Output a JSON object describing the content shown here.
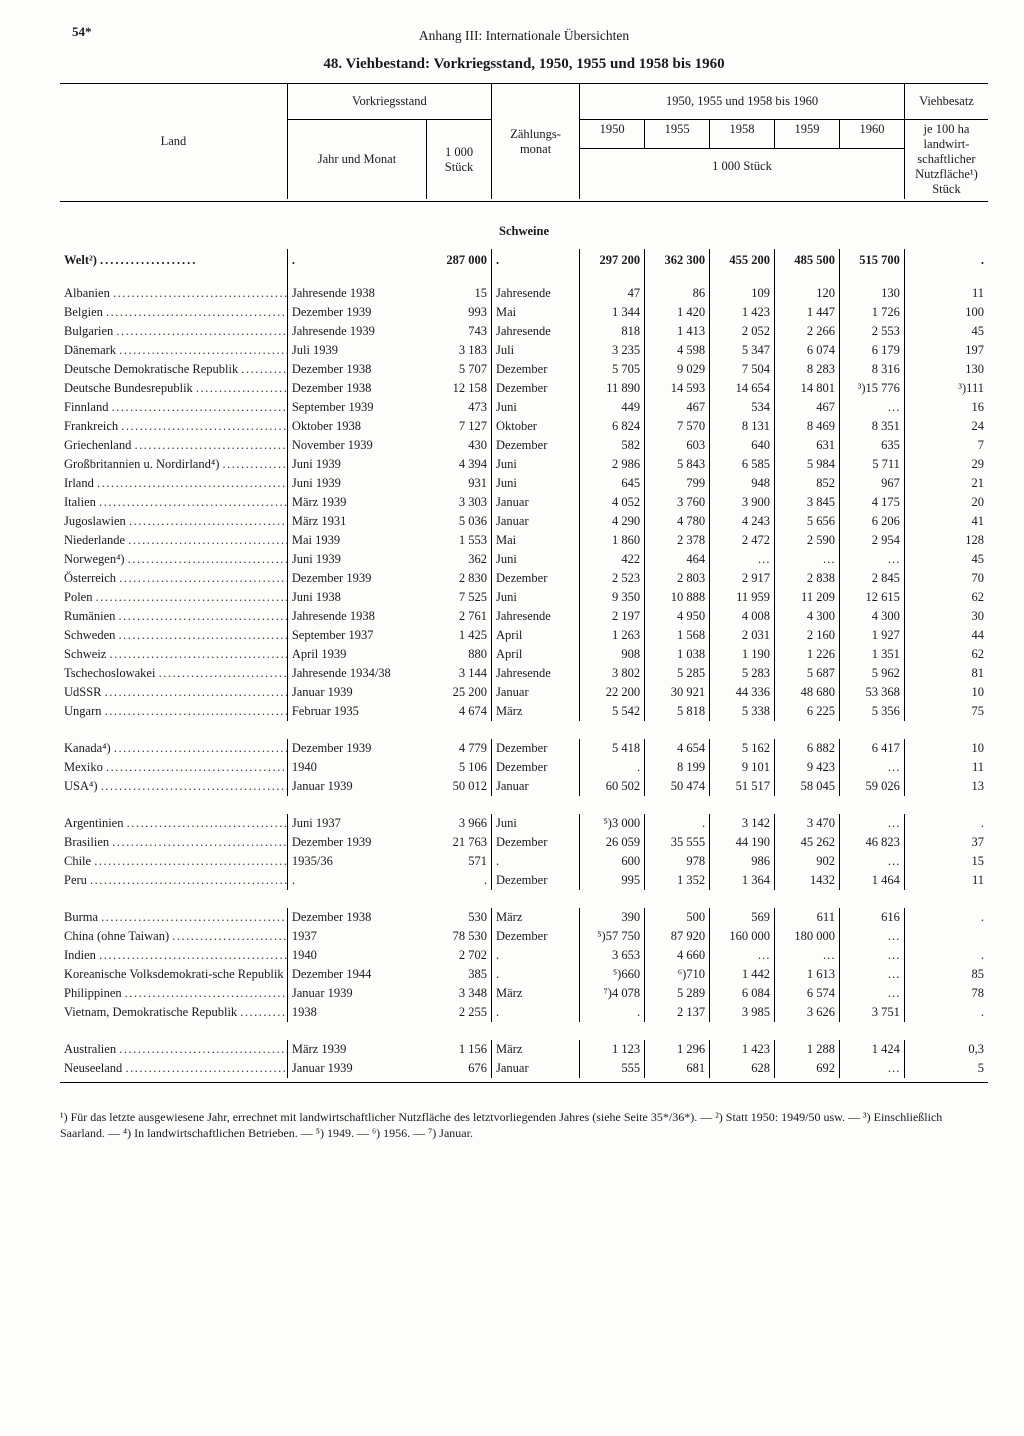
{
  "page_number": "54*",
  "running_header": "Anhang III: Internationale Übersichten",
  "table_title": "48. Viehbestand: Vorkriegsstand, 1950, 1955 und 1958 bis 1960",
  "columns": {
    "land": "Land",
    "vorkrieg": "Vorkriegsstand",
    "jahr_monat": "Jahr und Monat",
    "k_stueck": "1 000 Stück",
    "zaehlungsmonat": "Zählungs-monat",
    "periode": "1950, 1955 und 1958 bis 1960",
    "y1950": "1950",
    "y1955": "1955",
    "y1958": "1958",
    "y1959": "1959",
    "y1960": "1960",
    "k_stueck_sub": "1 000 Stück",
    "viehbesatz": "Viehbesatz",
    "viehbesatz_sub": "je 100 ha landwirt-schaftlicher Nutzfläche¹) Stück"
  },
  "section_title": "Schweine",
  "world_row": {
    "land": "Welt²)",
    "k": "287 000",
    "v1950": "297 200",
    "v1955": "362 300",
    "v1958": "455 200",
    "v1959": "485 500",
    "v1960": "515 700"
  },
  "rows": [
    {
      "land": "Albanien",
      "jahr": "Jahresende 1938",
      "k": "15",
      "zm": "Jahresende",
      "v1950": "47",
      "v1955": "86",
      "v1958": "109",
      "v1959": "120",
      "v1960": "130",
      "vb": "11"
    },
    {
      "land": "Belgien",
      "jahr": "Dezember 1939",
      "k": "993",
      "zm": "Mai",
      "v1950": "1 344",
      "v1955": "1 420",
      "v1958": "1 423",
      "v1959": "1 447",
      "v1960": "1 726",
      "vb": "100"
    },
    {
      "land": "Bulgarien",
      "jahr": "Jahresende 1939",
      "k": "743",
      "zm": "Jahresende",
      "v1950": "818",
      "v1955": "1 413",
      "v1958": "2 052",
      "v1959": "2 266",
      "v1960": "2 553",
      "vb": "45"
    },
    {
      "land": "Dänemark",
      "jahr": "Juli 1939",
      "k": "3 183",
      "zm": "Juli",
      "v1950": "3 235",
      "v1955": "4 598",
      "v1958": "5 347",
      "v1959": "6 074",
      "v1960": "6 179",
      "vb": "197"
    },
    {
      "land": "Deutsche Demokratische Republik",
      "jahr": "Dezember 1938",
      "k": "5 707",
      "zm": "Dezember",
      "v1950": "5 705",
      "v1955": "9 029",
      "v1958": "7 504",
      "v1959": "8 283",
      "v1960": "8 316",
      "vb": "130"
    },
    {
      "land": "Deutsche Bundesrepublik",
      "jahr": "Dezember 1938",
      "k": "12 158",
      "zm": "Dezember",
      "v1950": "11 890",
      "v1955": "14 593",
      "v1958": "14 654",
      "v1959": "14 801",
      "v1960": "³)15 776",
      "vb": "³)111"
    },
    {
      "land": "Finnland",
      "jahr": "September 1939",
      "k": "473",
      "zm": "Juni",
      "v1950": "449",
      "v1955": "467",
      "v1958": "534",
      "v1959": "467",
      "v1960": "…",
      "vb": "16"
    },
    {
      "land": "Frankreich",
      "jahr": "Oktober 1938",
      "k": "7 127",
      "zm": "Oktober",
      "v1950": "6 824",
      "v1955": "7 570",
      "v1958": "8 131",
      "v1959": "8 469",
      "v1960": "8 351",
      "vb": "24"
    },
    {
      "land": "Griechenland",
      "jahr": "November 1939",
      "k": "430",
      "zm": "Dezember",
      "v1950": "582",
      "v1955": "603",
      "v1958": "640",
      "v1959": "631",
      "v1960": "635",
      "vb": "7"
    },
    {
      "land": "Großbritannien u. Nordirland⁴)",
      "jahr": "Juni 1939",
      "k": "4 394",
      "zm": "Juni",
      "v1950": "2 986",
      "v1955": "5 843",
      "v1958": "6 585",
      "v1959": "5 984",
      "v1960": "5 711",
      "vb": "29"
    },
    {
      "land": "Irland",
      "jahr": "Juni 1939",
      "k": "931",
      "zm": "Juni",
      "v1950": "645",
      "v1955": "799",
      "v1958": "948",
      "v1959": "852",
      "v1960": "967",
      "vb": "21"
    },
    {
      "land": "Italien",
      "jahr": "März 1939",
      "k": "3 303",
      "zm": "Januar",
      "v1950": "4 052",
      "v1955": "3 760",
      "v1958": "3 900",
      "v1959": "3 845",
      "v1960": "4 175",
      "vb": "20"
    },
    {
      "land": "Jugoslawien",
      "jahr": "März 1931",
      "k": "5 036",
      "zm": "Januar",
      "v1950": "4 290",
      "v1955": "4 780",
      "v1958": "4 243",
      "v1959": "5 656",
      "v1960": "6 206",
      "vb": "41"
    },
    {
      "land": "Niederlande",
      "jahr": "Mai 1939",
      "k": "1 553",
      "zm": "Mai",
      "v1950": "1 860",
      "v1955": "2 378",
      "v1958": "2 472",
      "v1959": "2 590",
      "v1960": "2 954",
      "vb": "128"
    },
    {
      "land": "Norwegen⁴)",
      "jahr": "Juni 1939",
      "k": "362",
      "zm": "Juni",
      "v1950": "422",
      "v1955": "464",
      "v1958": "…",
      "v1959": "…",
      "v1960": "…",
      "vb": "45"
    },
    {
      "land": "Österreich",
      "jahr": "Dezember 1939",
      "k": "2 830",
      "zm": "Dezember",
      "v1950": "2 523",
      "v1955": "2 803",
      "v1958": "2 917",
      "v1959": "2 838",
      "v1960": "2 845",
      "vb": "70"
    },
    {
      "land": "Polen",
      "jahr": "Juni 1938",
      "k": "7 525",
      "zm": "Juni",
      "v1950": "9 350",
      "v1955": "10 888",
      "v1958": "11 959",
      "v1959": "11 209",
      "v1960": "12 615",
      "vb": "62"
    },
    {
      "land": "Rumänien",
      "jahr": "Jahresende 1938",
      "k": "2 761",
      "zm": "Jahresende",
      "v1950": "2 197",
      "v1955": "4 950",
      "v1958": "4 008",
      "v1959": "4 300",
      "v1960": "4 300",
      "vb": "30"
    },
    {
      "land": "Schweden",
      "jahr": "September 1937",
      "k": "1 425",
      "zm": "April",
      "v1950": "1 263",
      "v1955": "1 568",
      "v1958": "2 031",
      "v1959": "2 160",
      "v1960": "1 927",
      "vb": "44"
    },
    {
      "land": "Schweiz",
      "jahr": "April 1939",
      "k": "880",
      "zm": "April",
      "v1950": "908",
      "v1955": "1 038",
      "v1958": "1 190",
      "v1959": "1 226",
      "v1960": "1 351",
      "vb": "62"
    },
    {
      "land": "Tschechoslowakei",
      "jahr": "Jahresende 1934/38",
      "k": "3 144",
      "zm": "Jahresende",
      "v1950": "3 802",
      "v1955": "5 285",
      "v1958": "5 283",
      "v1959": "5 687",
      "v1960": "5 962",
      "vb": "81"
    },
    {
      "land": "UdSSR",
      "jahr": "Januar 1939",
      "k": "25 200",
      "zm": "Januar",
      "v1950": "22 200",
      "v1955": "30 921",
      "v1958": "44 336",
      "v1959": "48 680",
      "v1960": "53 368",
      "vb": "10"
    },
    {
      "land": "Ungarn",
      "jahr": "Februar 1935",
      "k": "4 674",
      "zm": "März",
      "v1950": "5 542",
      "v1955": "5 818",
      "v1958": "5 338",
      "v1959": "6 225",
      "v1960": "5 356",
      "vb": "75"
    },
    {
      "gap": true
    },
    {
      "land": "Kanada⁴)",
      "jahr": "Dezember 1939",
      "k": "4 779",
      "zm": "Dezember",
      "v1950": "5 418",
      "v1955": "4 654",
      "v1958": "5 162",
      "v1959": "6 882",
      "v1960": "6 417",
      "vb": "10"
    },
    {
      "land": "Mexiko",
      "jahr": "1940",
      "k": "5 106",
      "zm": "Dezember",
      "v1950": ".",
      "v1955": "8 199",
      "v1958": "9 101",
      "v1959": "9 423",
      "v1960": "…",
      "vb": "11"
    },
    {
      "land": "USA⁴)",
      "jahr": "Januar 1939",
      "k": "50 012",
      "zm": "Januar",
      "v1950": "60 502",
      "v1955": "50 474",
      "v1958": "51 517",
      "v1959": "58 045",
      "v1960": "59 026",
      "vb": "13"
    },
    {
      "gap": true
    },
    {
      "land": "Argentinien",
      "jahr": "Juni 1937",
      "k": "3 966",
      "zm": "Juni",
      "v1950": "⁵)3 000",
      "v1955": ".",
      "v1958": "3 142",
      "v1959": "3 470",
      "v1960": "…",
      "vb": "."
    },
    {
      "land": "Brasilien",
      "jahr": "Dezember 1939",
      "k": "21 763",
      "zm": "Dezember",
      "v1950": "26 059",
      "v1955": "35 555",
      "v1958": "44 190",
      "v1959": "45 262",
      "v1960": "46 823",
      "vb": "37"
    },
    {
      "land": "Chile",
      "jahr": "1935/36",
      "k": "571",
      "zm": ".",
      "v1950": "600",
      "v1955": "978",
      "v1958": "986",
      "v1959": "902",
      "v1960": "…",
      "vb": "15"
    },
    {
      "land": "Peru",
      "jahr": ".",
      "k": ".",
      "zm": "Dezember",
      "v1950": "995",
      "v1955": "1 352",
      "v1958": "1 364",
      "v1959": "1432",
      "v1960": "1 464",
      "vb": "11"
    },
    {
      "gap": true
    },
    {
      "land": "Burma",
      "jahr": "Dezember 1938",
      "k": "530",
      "zm": "März",
      "v1950": "390",
      "v1955": "500",
      "v1958": "569",
      "v1959": "611",
      "v1960": "616",
      "vb": "."
    },
    {
      "land": "China (ohne Taiwan)",
      "jahr": "1937",
      "k": "78 530",
      "zm": "Dezember",
      "v1950": "⁵)57 750",
      "v1955": "87 920",
      "v1958": "160 000",
      "v1959": "180 000",
      "v1960": "…",
      "vb": ""
    },
    {
      "land": "Indien",
      "jahr": "1940",
      "k": "2 702",
      "zm": ".",
      "v1950": "3 653",
      "v1955": "4 660",
      "v1958": "…",
      "v1959": "…",
      "v1960": "…",
      "vb": "."
    },
    {
      "land": "Koreanische Volksdemokrati-sche Republik",
      "jahr": "Dezember 1944",
      "k": "385",
      "zm": ".",
      "v1950": "⁵)660",
      "v1955": "⁶)710",
      "v1958": "1 442",
      "v1959": "1 613",
      "v1960": "…",
      "vb": "85"
    },
    {
      "land": "Philippinen",
      "jahr": "Januar 1939",
      "k": "3 348",
      "zm": "März",
      "v1950": "⁷)4 078",
      "v1955": "5 289",
      "v1958": "6 084",
      "v1959": "6 574",
      "v1960": "…",
      "vb": "78"
    },
    {
      "land": "Vietnam, Demokratische Republik",
      "jahr": "1938",
      "k": "2 255",
      "zm": ".",
      "v1950": ".",
      "v1955": "2 137",
      "v1958": "3 985",
      "v1959": "3 626",
      "v1960": "3 751",
      "vb": "."
    },
    {
      "gap": true
    },
    {
      "land": "Australien",
      "jahr": "März 1939",
      "k": "1 156",
      "zm": "März",
      "v1950": "1 123",
      "v1955": "1 296",
      "v1958": "1 423",
      "v1959": "1 288",
      "v1960": "1 424",
      "vb": "0,3"
    },
    {
      "land": "Neuseeland",
      "jahr": "Januar 1939",
      "k": "676",
      "zm": "Januar",
      "v1950": "555",
      "v1955": "681",
      "v1958": "628",
      "v1959": "692",
      "v1960": "…",
      "vb": "5"
    }
  ],
  "footnotes": "¹) Für das letzte ausgewiesene Jahr, errechnet mit landwirtschaftlicher Nutzfläche des letztvorliegenden Jahres (siehe Seite 35*/36*). — ²) Statt 1950: 1949/50 usw. — ³) Einschließlich Saarland. — ⁴) In landwirtschaftlichen Betrieben. — ⁵) 1949. — ⁶) 1956. — ⁷) Januar.",
  "layout": {
    "col_widths_pct": [
      24.5,
      15,
      7,
      9.5,
      7,
      7,
      7,
      7,
      7,
      9
    ]
  },
  "colors": {
    "text": "#1a1a1a",
    "rule": "#000000",
    "bg": "#fdfdfb"
  }
}
